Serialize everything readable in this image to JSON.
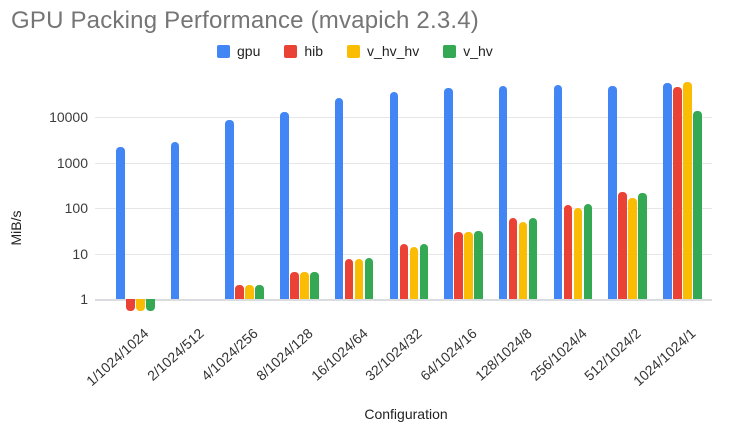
{
  "chart_data": {
    "type": "bar",
    "title": "GPU Packing Performance (mvapich 2.3.4)",
    "xlabel": "Configuration",
    "ylabel": "MiB/s",
    "yscale": "log",
    "y_ticks": [
      1,
      10,
      100,
      1000,
      10000
    ],
    "ylim": [
      0.45,
      70000
    ],
    "grid": true,
    "legend_position": "top",
    "title_color": "#757575",
    "gridline_color": "#e6e6e6",
    "categories": [
      "1/1024/1024",
      "2/1024/512",
      "4/1024/256",
      "8/1024/128",
      "16/1024/64",
      "32/1024/32",
      "64/1024/16",
      "128/1024/8",
      "256/1024/4",
      "512/1024/2",
      "1024/1024/1"
    ],
    "series": [
      {
        "name": "gpu",
        "color": "#4285f4",
        "values": [
          2200,
          2800,
          8500,
          13000,
          26000,
          35000,
          43000,
          47000,
          50000,
          47000,
          55000
        ]
      },
      {
        "name": "hib",
        "color": "#ea4335",
        "values": [
          0.55,
          null,
          2,
          3.9,
          7.7,
          16,
          30,
          60,
          118,
          230,
          45000
        ]
      },
      {
        "name": "v_hv_hv",
        "color": "#fbbc04",
        "values": [
          0.55,
          null,
          2,
          3.9,
          7.7,
          14,
          29,
          50,
          100,
          165,
          58000
        ]
      },
      {
        "name": "v_hv",
        "color": "#34a853",
        "values": [
          0.55,
          null,
          2,
          4,
          7.9,
          16,
          31,
          60,
          125,
          215,
          13500
        ]
      }
    ]
  }
}
